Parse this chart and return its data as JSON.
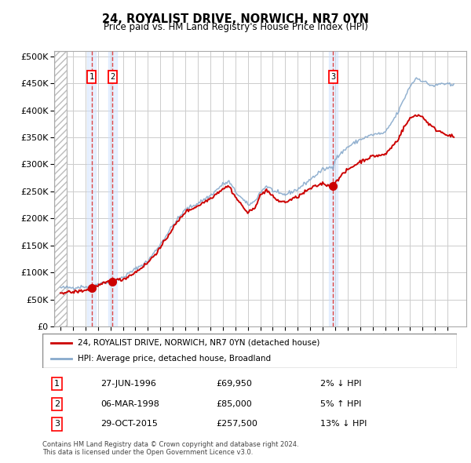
{
  "title": "24, ROYALIST DRIVE, NORWICH, NR7 0YN",
  "subtitle": "Price paid vs. HM Land Registry's House Price Index (HPI)",
  "legend_label_red": "24, ROYALIST DRIVE, NORWICH, NR7 0YN (detached house)",
  "legend_label_blue": "HPI: Average price, detached house, Broadland",
  "footer_line1": "Contains HM Land Registry data © Crown copyright and database right 2024.",
  "footer_line2": "This data is licensed under the Open Government Licence v3.0.",
  "transactions": [
    {
      "num": 1,
      "date": "27-JUN-1996",
      "price": 69950,
      "pct": "2%",
      "dir": "↓",
      "year": 1996.49
    },
    {
      "num": 2,
      "date": "06-MAR-1998",
      "price": 85000,
      "pct": "5%",
      "dir": "↑",
      "year": 1998.18
    },
    {
      "num": 3,
      "date": "29-OCT-2015",
      "price": 257500,
      "pct": "13%",
      "dir": "↓",
      "year": 2015.83
    }
  ],
  "ylim": [
    0,
    510000
  ],
  "yticks": [
    0,
    50000,
    100000,
    150000,
    200000,
    250000,
    300000,
    350000,
    400000,
    450000,
    500000
  ],
  "xlim_start": 1993.5,
  "xlim_end": 2026.5,
  "hatch_end": 1994.5,
  "red_color": "#cc0000",
  "blue_color": "#88aacc",
  "dashed_color": "#dd4444",
  "grid_color": "#cccccc",
  "sale_dot_color": "#cc0000",
  "hpi_anchors": [
    [
      1994.0,
      71500
    ],
    [
      1995.0,
      72000
    ],
    [
      1996.0,
      74000
    ],
    [
      1996.5,
      71500
    ],
    [
      1997.0,
      79000
    ],
    [
      1998.0,
      83000
    ],
    [
      1998.2,
      81000
    ],
    [
      1999.0,
      91000
    ],
    [
      2000.0,
      106000
    ],
    [
      2001.0,
      121000
    ],
    [
      2002.0,
      152000
    ],
    [
      2003.0,
      187000
    ],
    [
      2004.0,
      216000
    ],
    [
      2005.0,
      228000
    ],
    [
      2006.0,
      242000
    ],
    [
      2007.0,
      263000
    ],
    [
      2007.5,
      268000
    ],
    [
      2008.0,
      250000
    ],
    [
      2009.0,
      225000
    ],
    [
      2009.5,
      230000
    ],
    [
      2010.0,
      248000
    ],
    [
      2010.5,
      260000
    ],
    [
      2011.0,
      252000
    ],
    [
      2011.5,
      245000
    ],
    [
      2012.0,
      244000
    ],
    [
      2013.0,
      254000
    ],
    [
      2014.0,
      272000
    ],
    [
      2015.0,
      290000
    ],
    [
      2015.83,
      296000
    ],
    [
      2016.0,
      310000
    ],
    [
      2017.0,
      332000
    ],
    [
      2018.0,
      346000
    ],
    [
      2019.0,
      355000
    ],
    [
      2020.0,
      358000
    ],
    [
      2021.0,
      395000
    ],
    [
      2021.5,
      420000
    ],
    [
      2022.0,
      445000
    ],
    [
      2022.5,
      460000
    ],
    [
      2023.0,
      455000
    ],
    [
      2023.5,
      448000
    ],
    [
      2024.0,
      445000
    ],
    [
      2024.5,
      450000
    ],
    [
      2025.0,
      448000
    ],
    [
      2025.5,
      445000
    ]
  ],
  "red_anchors": [
    [
      1994.0,
      63000
    ],
    [
      1995.0,
      63500
    ],
    [
      1996.0,
      67000
    ],
    [
      1996.49,
      69950
    ],
    [
      1997.0,
      75000
    ],
    [
      1998.0,
      84000
    ],
    [
      1998.18,
      85000
    ],
    [
      1999.0,
      87000
    ],
    [
      2000.0,
      100000
    ],
    [
      2001.0,
      118000
    ],
    [
      2002.0,
      145000
    ],
    [
      2003.0,
      182000
    ],
    [
      2004.0,
      212000
    ],
    [
      2005.0,
      223000
    ],
    [
      2006.0,
      237000
    ],
    [
      2007.0,
      255000
    ],
    [
      2007.5,
      260000
    ],
    [
      2008.0,
      240000
    ],
    [
      2009.0,
      210000
    ],
    [
      2009.5,
      218000
    ],
    [
      2010.0,
      242000
    ],
    [
      2010.5,
      253000
    ],
    [
      2011.0,
      240000
    ],
    [
      2011.5,
      232000
    ],
    [
      2012.0,
      230000
    ],
    [
      2013.0,
      240000
    ],
    [
      2014.0,
      255000
    ],
    [
      2015.0,
      265000
    ],
    [
      2015.83,
      257500
    ],
    [
      2016.0,
      268000
    ],
    [
      2017.0,
      290000
    ],
    [
      2018.0,
      305000
    ],
    [
      2019.0,
      315000
    ],
    [
      2020.0,
      318000
    ],
    [
      2021.0,
      345000
    ],
    [
      2021.5,
      368000
    ],
    [
      2022.0,
      385000
    ],
    [
      2022.5,
      392000
    ],
    [
      2023.0,
      388000
    ],
    [
      2023.5,
      375000
    ],
    [
      2024.0,
      365000
    ],
    [
      2024.5,
      360000
    ],
    [
      2025.0,
      355000
    ],
    [
      2025.5,
      350000
    ]
  ]
}
